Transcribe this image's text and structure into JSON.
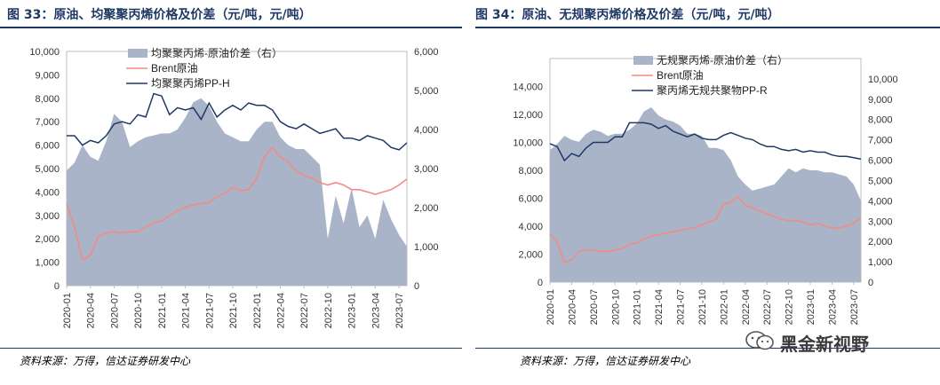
{
  "figures": [
    {
      "title": "图 33：原油、均聚聚丙烯价格及价差（元/吨，元/吨）",
      "source": "资料来源：万得，信达证券研发中心"
    },
    {
      "title": "图 34：原油、无规聚丙烯价格及价差（元/吨，元/吨）",
      "source": "资料来源：万得，信达证券研发中心"
    }
  ],
  "watermark": {
    "text": "黑金新视野",
    "icon": "wechat-icon"
  },
  "colors": {
    "spread": "#aab4c8",
    "brent": "#f28b82",
    "pp": "#1f3864",
    "title": "#1f3864"
  },
  "chart_data": [
    {
      "type": "area",
      "x_ticks": [
        "2020-01",
        "2020-04",
        "2020-07",
        "2020-10",
        "2021-01",
        "2021-04",
        "2021-07",
        "2021-10",
        "2022-01",
        "2022-04",
        "2022-07",
        "2022-10",
        "2023-01",
        "2023-04",
        "2023-07"
      ],
      "x_range": [
        0,
        43
      ],
      "ylim_left": [
        0,
        10000
      ],
      "yticks_left": [
        "0",
        "1,000",
        "2,000",
        "3,000",
        "4,000",
        "5,000",
        "6,000",
        "7,000",
        "8,000",
        "9,000",
        "10,000"
      ],
      "ylim_right": [
        0,
        6000
      ],
      "yticks_right": [
        "0",
        "1,000",
        "2,000",
        "3,000",
        "4,000",
        "5,000",
        "6,000"
      ],
      "legend": [
        "均聚聚丙烯-原油价差（右）",
        "Brent原油",
        "均聚聚丙烯PP-H"
      ],
      "series": [
        {
          "name": "均聚聚丙烯-原油价差（右）",
          "kind": "area",
          "axis": "right",
          "x": [
            0,
            1,
            2,
            3,
            4,
            5,
            6,
            7,
            8,
            9,
            10,
            11,
            12,
            13,
            14,
            15,
            16,
            17,
            18,
            19,
            20,
            21,
            22,
            23,
            24,
            25,
            26,
            27,
            28,
            29,
            30,
            31,
            32,
            33,
            34,
            35,
            36,
            37,
            38,
            39,
            40,
            41,
            42,
            43
          ],
          "values": [
            2950,
            3150,
            3600,
            3300,
            3200,
            3700,
            4400,
            4200,
            3550,
            3700,
            3800,
            3850,
            3900,
            3900,
            4000,
            4300,
            4700,
            4800,
            4600,
            4200,
            3900,
            3800,
            3700,
            3700,
            4000,
            4200,
            4200,
            3800,
            3600,
            3500,
            3500,
            3300,
            3100,
            1200,
            2300,
            1600,
            2500,
            1500,
            1800,
            1200,
            2200,
            1700,
            1300,
            1000
          ]
        },
        {
          "name": "Brent原油",
          "kind": "line",
          "axis": "left",
          "x": [
            0,
            1,
            2,
            3,
            4,
            5,
            6,
            7,
            8,
            9,
            10,
            11,
            12,
            13,
            14,
            15,
            16,
            17,
            18,
            19,
            20,
            21,
            22,
            23,
            24,
            25,
            26,
            27,
            28,
            29,
            30,
            31,
            32,
            33,
            34,
            35,
            36,
            37,
            38,
            39,
            40,
            41,
            42,
            43
          ],
          "values": [
            3500,
            2500,
            1100,
            1300,
            2100,
            2250,
            2300,
            2250,
            2300,
            2300,
            2500,
            2700,
            2750,
            3000,
            3200,
            3350,
            3450,
            3500,
            3550,
            3800,
            3950,
            4200,
            4050,
            4100,
            4600,
            5500,
            5900,
            5500,
            5300,
            4900,
            4700,
            4600,
            4400,
            4300,
            4400,
            4300,
            4100,
            4100,
            4000,
            3900,
            4000,
            4100,
            4300,
            4550
          ]
        },
        {
          "name": "均聚聚丙烯PP-H",
          "kind": "line",
          "axis": "left",
          "x": [
            0,
            1,
            2,
            3,
            4,
            5,
            6,
            7,
            8,
            9,
            10,
            11,
            12,
            13,
            14,
            15,
            16,
            17,
            18,
            19,
            20,
            21,
            22,
            23,
            24,
            25,
            26,
            27,
            28,
            29,
            30,
            31,
            32,
            33,
            34,
            35,
            36,
            37,
            38,
            39,
            40,
            41,
            42,
            43
          ],
          "values": [
            6400,
            6400,
            6000,
            6200,
            6100,
            6400,
            6900,
            7000,
            6900,
            7300,
            7200,
            8200,
            8100,
            7300,
            7600,
            7500,
            7600,
            7100,
            7800,
            7200,
            7500,
            7700,
            7500,
            7800,
            7700,
            7700,
            7500,
            7000,
            6800,
            6700,
            6900,
            6700,
            6500,
            6600,
            6700,
            6300,
            6300,
            6200,
            6400,
            6300,
            6200,
            5900,
            5800,
            6100
          ]
        }
      ]
    },
    {
      "type": "area",
      "x_ticks": [
        "2020-01",
        "2020-04",
        "2020-07",
        "2020-10",
        "2021-01",
        "2021-04",
        "2021-07",
        "2021-10",
        "2022-01",
        "2022-04",
        "2022-07",
        "2022-10",
        "2023-01",
        "2023-04",
        "2023-07"
      ],
      "x_range": [
        0,
        43
      ],
      "ylim_left": [
        0,
        16000
      ],
      "yticks_left": [
        "0",
        "2,000",
        "4,000",
        "6,000",
        "8,000",
        "10,000",
        "12,000",
        "14,000"
      ],
      "ylim_right": [
        0,
        11000
      ],
      "yticks_right": [
        "0",
        "1,000",
        "2,000",
        "3,000",
        "4,000",
        "5,000",
        "6,000",
        "7,000",
        "8,000",
        "9,000",
        "10,000"
      ],
      "legend": [
        "无规聚丙烯-原油价差（右）",
        "Brent原油",
        "聚丙烯无规共聚物PP-R"
      ],
      "series": [
        {
          "name": "无规聚丙烯-原油价差（右）",
          "kind": "area",
          "axis": "right",
          "x": [
            0,
            1,
            2,
            3,
            4,
            5,
            6,
            7,
            8,
            9,
            10,
            11,
            12,
            13,
            14,
            15,
            16,
            17,
            18,
            19,
            20,
            21,
            22,
            23,
            24,
            25,
            26,
            27,
            28,
            29,
            30,
            31,
            32,
            33,
            34,
            35,
            36,
            37,
            38,
            39,
            40,
            41,
            42,
            43
          ],
          "values": [
            6500,
            6800,
            7200,
            7000,
            6900,
            7300,
            7500,
            7400,
            7200,
            7300,
            7300,
            7500,
            7800,
            8400,
            8600,
            8200,
            8000,
            7900,
            7700,
            7300,
            7300,
            7200,
            6600,
            6600,
            6500,
            6000,
            5200,
            4800,
            4500,
            4600,
            4700,
            4800,
            5200,
            5600,
            5400,
            5600,
            5500,
            5500,
            5400,
            5400,
            5300,
            5200,
            4800,
            4000
          ]
        },
        {
          "name": "Brent原油",
          "kind": "line",
          "axis": "left",
          "x": [
            0,
            1,
            2,
            3,
            4,
            5,
            6,
            7,
            8,
            9,
            10,
            11,
            12,
            13,
            14,
            15,
            16,
            17,
            18,
            19,
            20,
            21,
            22,
            23,
            24,
            25,
            26,
            27,
            28,
            29,
            30,
            31,
            32,
            33,
            34,
            35,
            36,
            37,
            38,
            39,
            40,
            41,
            42,
            43
          ],
          "values": [
            3400,
            2900,
            1400,
            1600,
            2200,
            2300,
            2300,
            2200,
            2200,
            2300,
            2400,
            2700,
            2800,
            3100,
            3300,
            3400,
            3500,
            3600,
            3700,
            3800,
            3900,
            4100,
            4300,
            4500,
            5600,
            5700,
            6100,
            5500,
            5300,
            5100,
            4900,
            4700,
            4500,
            4400,
            4400,
            4300,
            4100,
            4200,
            4000,
            3900,
            3900,
            4000,
            4200,
            4600
          ]
        },
        {
          "name": "聚丙烯无规共聚物PP-R",
          "kind": "line",
          "axis": "left",
          "x": [
            0,
            1,
            2,
            3,
            4,
            5,
            6,
            7,
            8,
            9,
            10,
            11,
            12,
            13,
            14,
            15,
            16,
            17,
            18,
            19,
            20,
            21,
            22,
            23,
            24,
            25,
            26,
            27,
            28,
            29,
            30,
            31,
            32,
            33,
            34,
            35,
            36,
            37,
            38,
            39,
            40,
            41,
            42,
            43
          ],
          "values": [
            9900,
            9700,
            8700,
            9200,
            9000,
            9600,
            10000,
            10000,
            10000,
            10400,
            10400,
            11400,
            11400,
            11400,
            11300,
            11000,
            11200,
            10800,
            10600,
            10400,
            10600,
            10300,
            10200,
            10200,
            10500,
            10700,
            10500,
            10300,
            10200,
            9900,
            9700,
            9700,
            9500,
            9400,
            9500,
            9300,
            9400,
            9300,
            9300,
            9100,
            9000,
            9000,
            8900,
            8800
          ]
        }
      ]
    }
  ]
}
